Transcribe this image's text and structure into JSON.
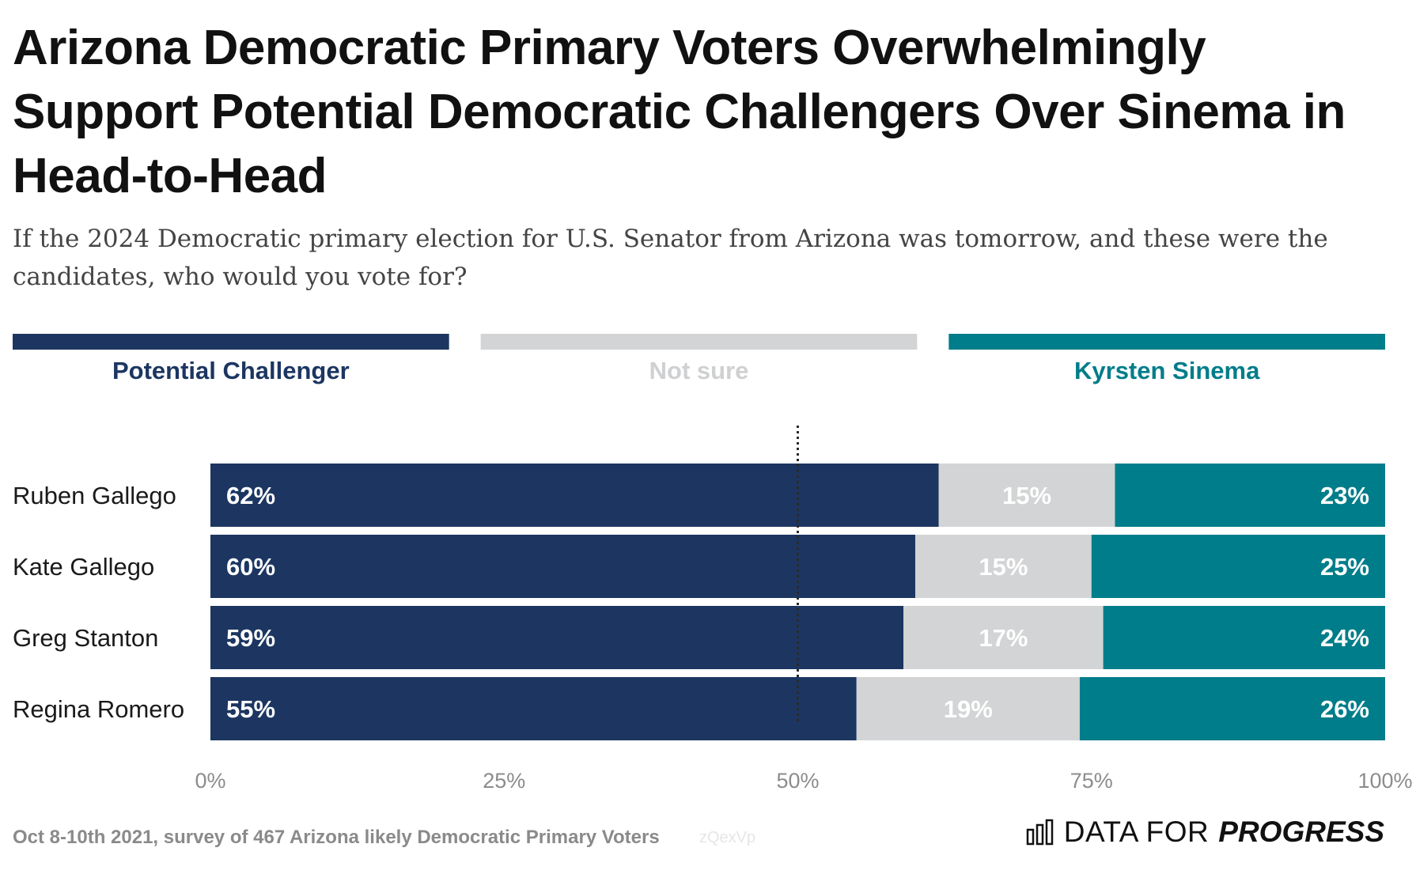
{
  "header": {
    "title": "Arizona Democratic Primary Voters Overwhelmingly Support Potential Democratic Challengers Over Sinema in Head-to-Head",
    "subtitle": "If the 2024 Democratic primary election for U.S. Senator from Arizona was tomorrow, and these were the candidates, who would you vote for?"
  },
  "footer": {
    "note": "Oct 8-10th 2021, survey of 467 Arizona likely Democratic Primary Voters",
    "watermark": "zQexVp",
    "logo_light": "DATA FOR",
    "logo_heavy": "PROGRESS"
  },
  "chart_data": {
    "type": "bar",
    "orientation": "horizontal",
    "stacked": true,
    "categories": [
      "Ruben Gallego",
      "Kate Gallego",
      "Greg Stanton",
      "Regina Romero"
    ],
    "series": [
      {
        "name": "Potential Challenger",
        "values": [
          62,
          60,
          59,
          55
        ],
        "color": "#1c3661",
        "label_color": "#ffffff"
      },
      {
        "name": "Not sure",
        "values": [
          15,
          15,
          17,
          19
        ],
        "color": "#d3d4d5",
        "label_color": "#ffffff"
      },
      {
        "name": "Kyrsten Sinema",
        "values": [
          23,
          25,
          24,
          26
        ],
        "color": "#007d8a",
        "label_color": "#ffffff"
      }
    ],
    "legend_text_colors": [
      "#1c3661",
      "#cfd0d1",
      "#007d8a"
    ],
    "xlim": [
      0,
      100
    ],
    "xticks": [
      "0%",
      "25%",
      "50%",
      "75%",
      "100%"
    ],
    "reference_line": 50,
    "legend_position": "top"
  }
}
